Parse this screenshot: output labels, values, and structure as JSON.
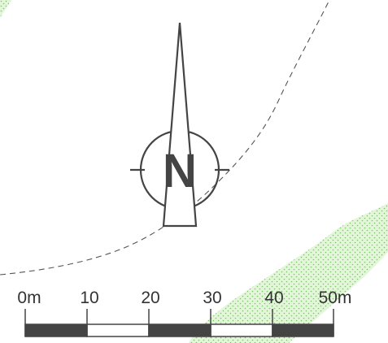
{
  "map": {
    "north_arrow": {
      "label": "N",
      "icon": "north-arrow-icon"
    },
    "scale_bar": {
      "unit": "m",
      "tick_labels": [
        "0m",
        "10",
        "20",
        "30",
        "40",
        "50m"
      ],
      "segment_colors": [
        "#444444",
        "#ffffff",
        "#444444",
        "#ffffff",
        "#444444"
      ]
    },
    "colors": {
      "vegetation_fill": "#d9f5cc",
      "vegetation_dots": "#7fbf6f",
      "boundary_line": "#555555",
      "symbol_dark": "#444444"
    }
  }
}
